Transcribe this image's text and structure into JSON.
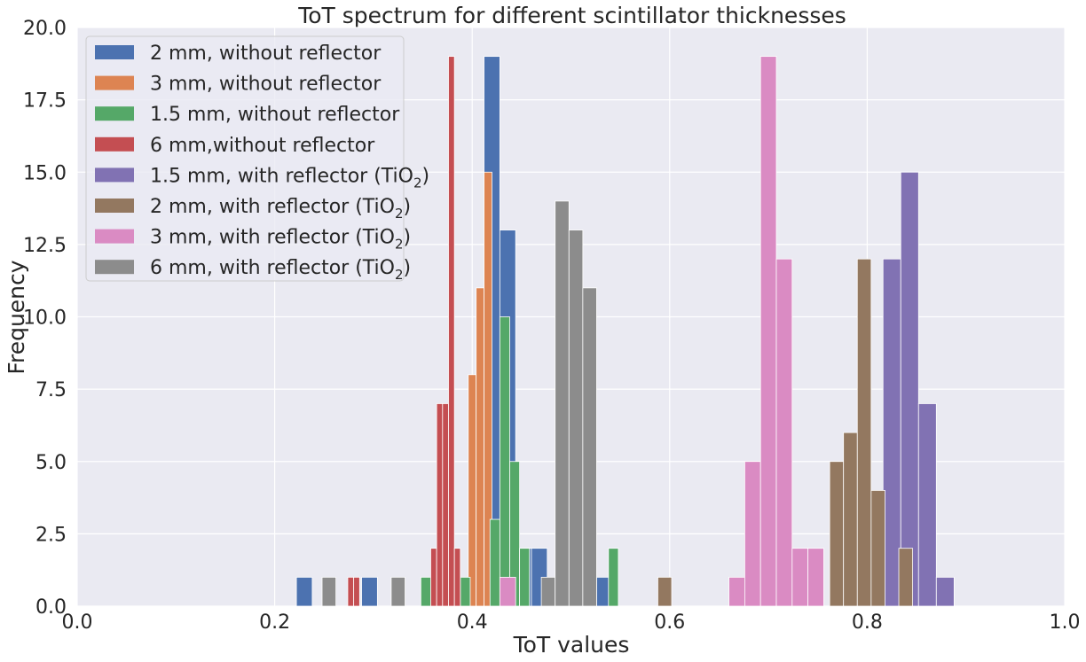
{
  "chart_data": {
    "type": "bar",
    "title": "ToT spectrum for different scintillator thicknesses",
    "xlabel": "ToT values",
    "ylabel": "Frequency",
    "xlim": [
      0.0,
      1.0
    ],
    "ylim": [
      0.0,
      20.0
    ],
    "xticks": [
      "0.0",
      "0.2",
      "0.4",
      "0.6",
      "0.8",
      "1.0"
    ],
    "yticks": [
      "0.0",
      "2.5",
      "5.0",
      "7.5",
      "10.0",
      "12.5",
      "15.0",
      "17.5",
      "20.0"
    ],
    "grid": true,
    "legend_position": "top-left",
    "series": [
      {
        "name": "2 mm, without reflector",
        "color": "#4c72b0",
        "bins": [
          [
            0.222,
            0.238,
            1
          ],
          [
            0.288,
            0.304,
            1
          ],
          [
            0.412,
            0.428,
            19
          ],
          [
            0.428,
            0.444,
            13
          ],
          [
            0.444,
            0.46,
            2
          ],
          [
            0.46,
            0.476,
            2
          ],
          [
            0.526,
            0.542,
            1
          ]
        ]
      },
      {
        "name": "3 mm, without reflector",
        "color": "#dd8452",
        "bins": [
          [
            0.348,
            0.356,
            1
          ],
          [
            0.388,
            0.396,
            1
          ],
          [
            0.396,
            0.404,
            8
          ],
          [
            0.404,
            0.412,
            11
          ],
          [
            0.412,
            0.42,
            15
          ],
          [
            0.42,
            0.428,
            1
          ],
          [
            0.428,
            0.436,
            1
          ],
          [
            0.436,
            0.444,
            1
          ]
        ]
      },
      {
        "name": "1.5 mm, without reflector",
        "color": "#55a868",
        "bins": [
          [
            0.348,
            0.358,
            1
          ],
          [
            0.388,
            0.398,
            1
          ],
          [
            0.418,
            0.428,
            3
          ],
          [
            0.428,
            0.438,
            10
          ],
          [
            0.438,
            0.448,
            5
          ],
          [
            0.448,
            0.458,
            2
          ],
          [
            0.538,
            0.548,
            2
          ]
        ]
      },
      {
        "name": "6 mm,without reflector",
        "color": "#c44e52",
        "bins": [
          [
            0.274,
            0.28,
            1
          ],
          [
            0.28,
            0.286,
            1
          ],
          [
            0.358,
            0.364,
            2
          ],
          [
            0.364,
            0.37,
            7
          ],
          [
            0.37,
            0.376,
            7
          ],
          [
            0.376,
            0.382,
            19
          ],
          [
            0.382,
            0.388,
            2
          ]
        ]
      },
      {
        "name": "1.5 mm, with reflector (TiO2)",
        "color": "#8172b3",
        "bins": [
          [
            0.816,
            0.834,
            12
          ],
          [
            0.834,
            0.852,
            15
          ],
          [
            0.852,
            0.87,
            7
          ],
          [
            0.87,
            0.888,
            1
          ]
        ]
      },
      {
        "name": "2 mm, with reflector (TiO2)",
        "color": "#937860",
        "bins": [
          [
            0.588,
            0.602,
            1
          ],
          [
            0.762,
            0.776,
            5
          ],
          [
            0.776,
            0.79,
            6
          ],
          [
            0.79,
            0.804,
            12
          ],
          [
            0.804,
            0.818,
            4
          ],
          [
            0.832,
            0.846,
            2
          ]
        ]
      },
      {
        "name": "3 mm, with reflector (TiO2)",
        "color": "#da8bc3",
        "bins": [
          [
            0.428,
            0.444,
            1
          ],
          [
            0.66,
            0.676,
            1
          ],
          [
            0.676,
            0.692,
            5
          ],
          [
            0.692,
            0.708,
            19
          ],
          [
            0.708,
            0.724,
            12
          ],
          [
            0.724,
            0.74,
            2
          ],
          [
            0.74,
            0.756,
            2
          ]
        ]
      },
      {
        "name": "6 mm, with reflector (TiO2)",
        "color": "#8c8c8c",
        "bins": [
          [
            0.248,
            0.262,
            1
          ],
          [
            0.318,
            0.332,
            1
          ],
          [
            0.47,
            0.484,
            1
          ],
          [
            0.484,
            0.498,
            14
          ],
          [
            0.498,
            0.512,
            13
          ],
          [
            0.512,
            0.526,
            11
          ]
        ]
      }
    ]
  },
  "legend": {
    "items": [
      {
        "label": "2 mm, without reflector",
        "color": "#4c72b0",
        "suffix": false
      },
      {
        "label": "3 mm, without reflector",
        "color": "#dd8452",
        "suffix": false
      },
      {
        "label": "1.5 mm, without reflector",
        "color": "#55a868",
        "suffix": false
      },
      {
        "label": "6 mm,without reflector",
        "color": "#c44e52",
        "suffix": false
      },
      {
        "label": "1.5 mm, with reflector (TiO",
        "color": "#8172b3",
        "suffix": true
      },
      {
        "label": "2 mm, with reflector (TiO",
        "color": "#937860",
        "suffix": true
      },
      {
        "label": "3 mm, with reflector (TiO",
        "color": "#da8bc3",
        "suffix": true
      },
      {
        "label": "6 mm, with reflector (TiO",
        "color": "#8c8c8c",
        "suffix": true
      }
    ],
    "subscript": "2",
    "close_paren": ")"
  }
}
